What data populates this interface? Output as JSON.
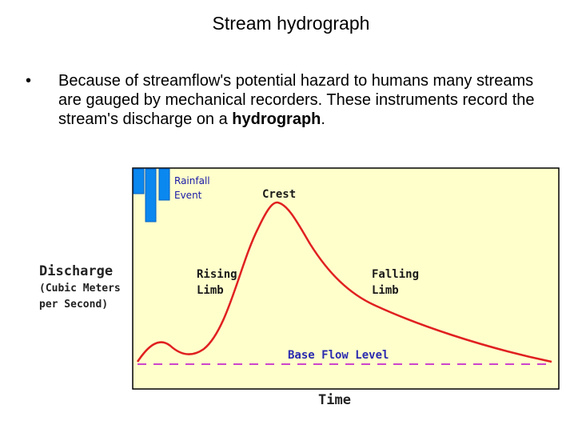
{
  "title": "Stream hydrograph",
  "bullet": {
    "marker": "•",
    "text_before": "Because of streamflow's potential hazard to humans many streams are gauged by mechanical recorders. These instruments record the stream's discharge on a ",
    "bold_term": "hydrograph",
    "text_after": "."
  },
  "figure": {
    "rainfall_label_line1": "Rainfall",
    "rainfall_label_line2": "Event",
    "crest_label": "Crest",
    "rising_limb_line1": "Rising",
    "rising_limb_line2": "Limb",
    "falling_limb_line1": "Falling",
    "falling_limb_line2": "Limb",
    "base_flow_label": "Base Flow Level",
    "y_axis_line1": "Discharge",
    "y_axis_line2": "(Cubic Meters",
    "y_axis_line3": "per Second)",
    "x_axis_label": "Time",
    "colors": {
      "panel_bg": "#ffffcc",
      "curve": "#e02020",
      "rainfall_bars": "#0a88f0",
      "base_flow": "#cc44cc",
      "label_blue": "#1a1aa8"
    }
  }
}
